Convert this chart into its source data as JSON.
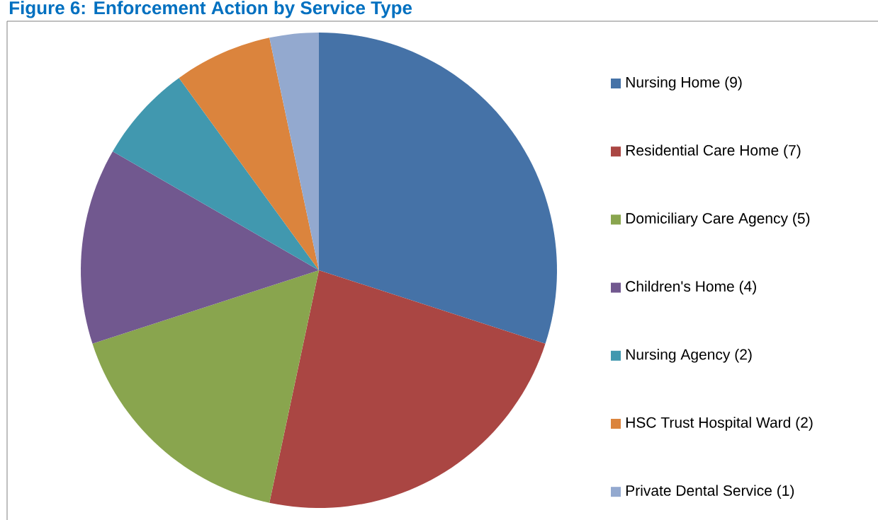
{
  "chart_data": {
    "type": "pie",
    "title": "Figure 6: Enforcement Action by Service Type",
    "categories": [
      "Nursing Home (9)",
      "Residential Care Home (7)",
      "Domiciliary Care Agency (5)",
      "Children's Home (4)",
      "Nursing Agency (2)",
      "HSC Trust Hospital Ward (2)",
      "Private Dental Service (1)"
    ],
    "values": [
      9,
      7,
      5,
      4,
      2,
      2,
      1
    ],
    "colors": [
      "#4572a7",
      "#aa4643",
      "#89a54e",
      "#71588f",
      "#4198af",
      "#db843d",
      "#93a9cf"
    ],
    "legend": "right"
  }
}
